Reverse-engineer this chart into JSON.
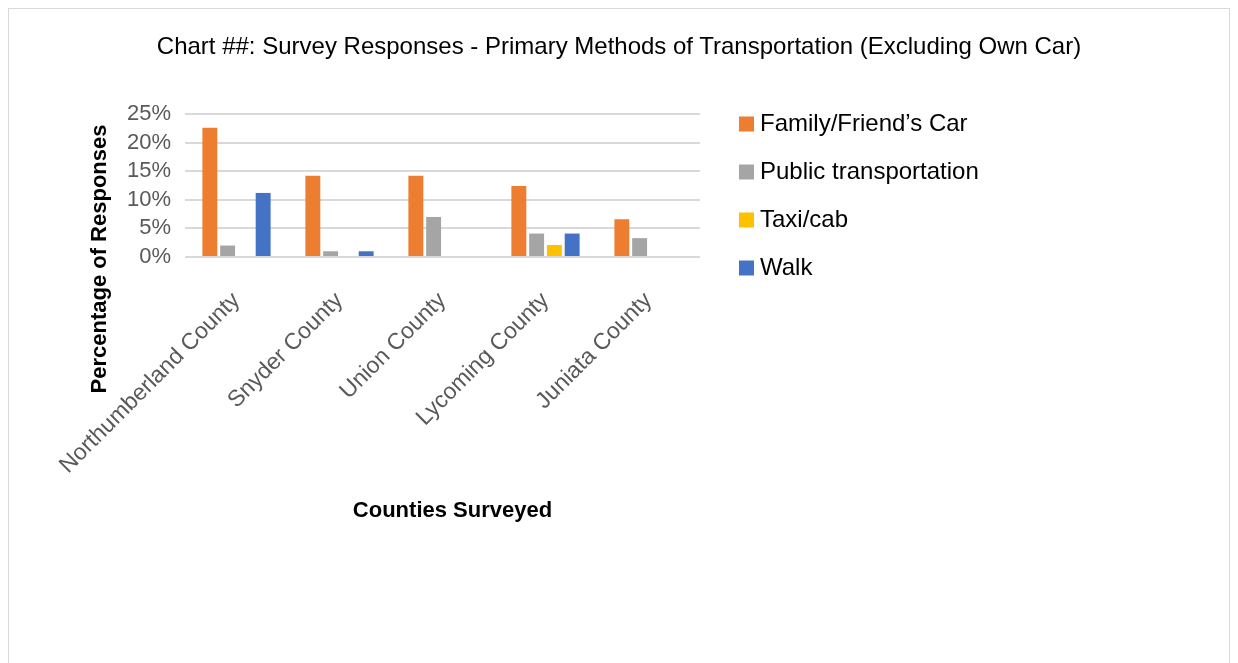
{
  "chart_data": {
    "type": "bar",
    "title": "Chart ##: Survey Responses - Primary Methods of Transportation (Excluding Own Car)",
    "xlabel": "Counties Surveyed",
    "ylabel": "Percentage of Responses",
    "categories": [
      "Northumberland County",
      "Snyder County",
      "Union County",
      "Lycoming County",
      "Juniata County"
    ],
    "series": [
      {
        "name": "Family/Friend’s Car",
        "color": "#ed7d31",
        "values": [
          22.6,
          14.2,
          14.2,
          12.4,
          6.6
        ]
      },
      {
        "name": "Public transportation",
        "color": "#a5a5a5",
        "values": [
          2.0,
          1.0,
          7.0,
          4.1,
          3.3
        ]
      },
      {
        "name": "Taxi/cab",
        "color": "#ffc000",
        "values": [
          0,
          0,
          0,
          2.1,
          0
        ]
      },
      {
        "name": "Walk",
        "color": "#4472c4",
        "values": [
          11.2,
          1.0,
          0,
          4.1,
          0
        ]
      }
    ],
    "ylim": [
      0,
      25
    ],
    "yticks": [
      {
        "value": 0,
        "label": "0%"
      },
      {
        "value": 5,
        "label": "5%"
      },
      {
        "value": 10,
        "label": "10%"
      },
      {
        "value": 15,
        "label": "15%"
      },
      {
        "value": 20,
        "label": "20%"
      },
      {
        "value": 25,
        "label": "25%"
      }
    ],
    "grid": "y",
    "legend": "right"
  }
}
